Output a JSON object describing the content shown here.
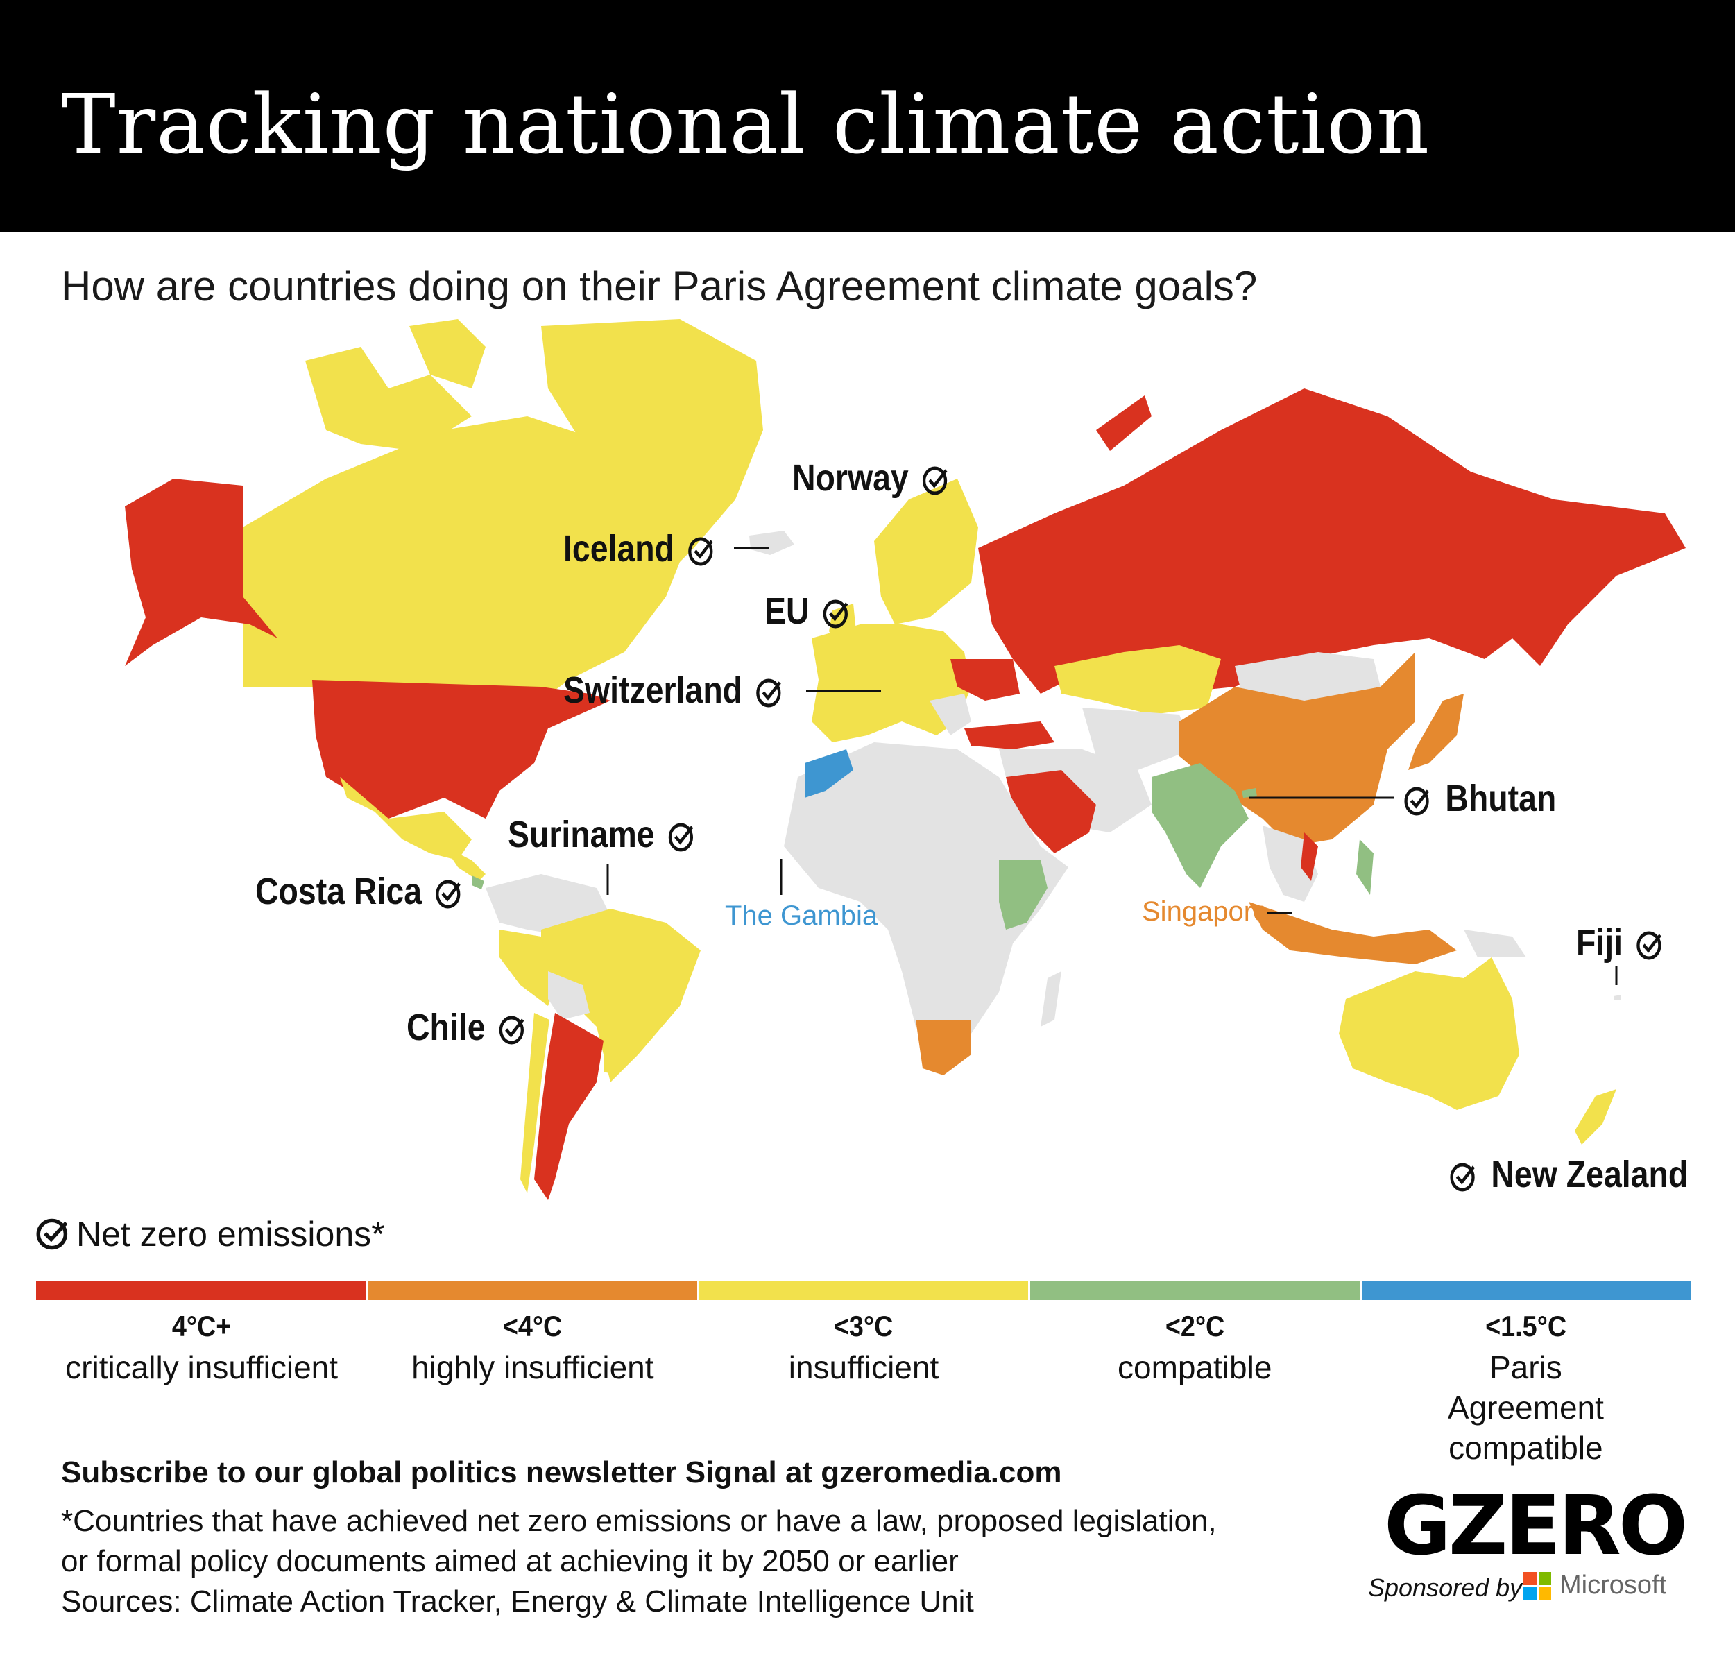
{
  "header": {
    "title": "Tracking national climate action",
    "subtitle": "How are countries doing on their Paris Agreement climate goals?"
  },
  "colors": {
    "critically": "#d9321f",
    "highly": "#e5892f",
    "insufficient": "#f2e14c",
    "compatible2": "#91bf82",
    "paris": "#3e96d1",
    "no_data": "#e3e3e3",
    "ocean": "#ffffff"
  },
  "map_labels": {
    "norway": "Norway",
    "iceland": "Iceland",
    "eu": "EU",
    "switzerland": "Switzerland",
    "bhutan": "Bhutan",
    "suriname": "Suriname",
    "costa_rica": "Costa Rica",
    "the_gambia": "The Gambia",
    "singapore": "Singapore",
    "fiji": "Fiji",
    "chile": "Chile",
    "new_zealand": "New Zealand"
  },
  "legend": {
    "net_zero": "Net zero emissions*",
    "items": [
      {
        "head": "4°C+",
        "sub": "critically insufficient",
        "color": "#d9321f"
      },
      {
        "head": "<4°C",
        "sub": "highly insufficient",
        "color": "#e5892f"
      },
      {
        "head": "<3°C",
        "sub": "insufficient",
        "color": "#f2e14c"
      },
      {
        "head": "<2°C",
        "sub": "compatible",
        "color": "#91bf82"
      },
      {
        "head": "<1.5°C",
        "sub": "Paris Agreement compatible",
        "color": "#3e96d1"
      }
    ]
  },
  "footer": {
    "subscribe": "Subscribe to our global politics newsletter Signal at gzeromedia.com",
    "note_line1": "*Countries that have achieved net zero emissions or have a law, proposed legislation,",
    "note_line2": "or formal policy documents aimed at achieving it by 2050 or earlier",
    "sources": "Sources: Climate Action Tracker, Energy & Climate Intelligence Unit",
    "logo": "GZERO",
    "sponsored": "Sponsored by",
    "sponsor": "Microsoft"
  }
}
